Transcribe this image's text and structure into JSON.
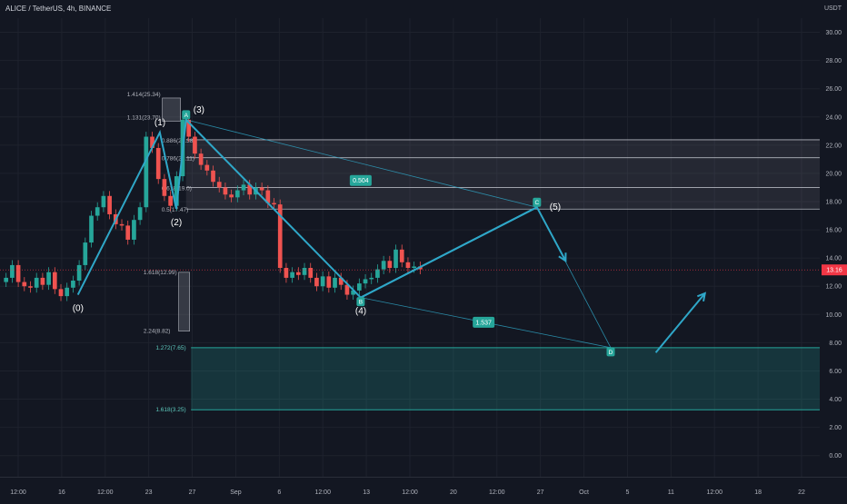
{
  "header": {
    "symbol_title": "ALICE / TetherUS, 4h, BINANCE",
    "currency": "USDT"
  },
  "colors": {
    "background": "#131722",
    "up_candle": "#26a69a",
    "down_candle": "#ef5350",
    "wave_line": "#2fa7c8",
    "fib_box_upper": "#787b86",
    "fib_box_target": "#26a69a",
    "price_tag": "#f23645"
  },
  "chart_data": {
    "type": "candlestick",
    "title": "ALICE / TetherUS, 4h, BINANCE",
    "y_unit": "USDT",
    "ylim": [
      -1.5,
      31
    ],
    "y_ticks": [
      0.0,
      2.0,
      4.0,
      6.0,
      8.0,
      10.0,
      12.0,
      14.0,
      16.0,
      18.0,
      20.0,
      22.0,
      24.0,
      26.0,
      28.0,
      30.0
    ],
    "x_ticks": [
      "12:00",
      "16",
      "12:00",
      "23",
      "27",
      "Sep",
      "6",
      "12:00",
      "13",
      "12:00",
      "20",
      "12:00",
      "27",
      "Oct",
      "5",
      "11",
      "12:00",
      "18",
      "22"
    ],
    "last_price": {
      "value": 13.16,
      "label": "13.16"
    },
    "price_series": [
      12.3,
      12.6,
      13.5,
      12.3,
      12.0,
      11.9,
      12.6,
      12.1,
      13.0,
      11.8,
      11.3,
      11.9,
      12.4,
      13.5,
      15.1,
      17.0,
      17.6,
      18.4,
      17.1,
      16.4,
      16.3,
      15.3,
      16.7,
      17.6,
      22.6,
      21.8,
      19.6,
      18.4,
      17.7,
      19.8,
      23.8,
      22.6,
      21.4,
      20.6,
      20.2,
      19.4,
      19.0,
      18.5,
      18.3,
      18.8,
      19.2,
      18.5,
      19.0,
      18.8,
      17.9,
      17.8,
      13.3,
      12.6,
      13.0,
      12.8,
      13.3,
      12.6,
      12.0,
      12.7,
      11.9,
      12.6,
      12.1,
      11.4,
      11.7,
      12.2,
      12.5,
      12.6,
      13.2,
      13.8,
      13.3,
      14.6,
      13.7,
      13.3,
      13.4,
      13.2
    ],
    "waves": [
      {
        "label": "(0)",
        "x": 0.095,
        "y": 11.4
      },
      {
        "label": "(1)",
        "x": 0.195,
        "y": 22.9
      },
      {
        "label": "(2)",
        "x": 0.215,
        "y": 17.5
      },
      {
        "label": "(3)",
        "x": 0.227,
        "y": 23.8
      },
      {
        "label": "(4)",
        "x": 0.44,
        "y": 11.2
      },
      {
        "label": "(5)",
        "x": 0.655,
        "y": 17.6
      }
    ],
    "projection": [
      {
        "x": 0.44,
        "y": 11.2
      },
      {
        "x": 0.655,
        "y": 17.6
      },
      {
        "x": 0.69,
        "y": 13.8
      }
    ],
    "future_arrow": [
      {
        "x": 0.8,
        "y": 7.3
      },
      {
        "x": 0.86,
        "y": 11.5
      }
    ],
    "abcd": [
      {
        "label": "A",
        "x": 0.227,
        "y": 23.8
      },
      {
        "label": "B",
        "x": 0.44,
        "y": 11.2
      },
      {
        "label": "C",
        "x": 0.655,
        "y": 17.6
      },
      {
        "label": "D",
        "x": 0.745,
        "y": 7.65
      }
    ],
    "abcd_ratios": [
      {
        "label": "0.504",
        "x": 0.44,
        "y": 19.5
      },
      {
        "label": "1.537",
        "x": 0.59,
        "y": 9.45
      }
    ],
    "fib_levels_upper": [
      {
        "label": "1.414(25.34)",
        "y": 25.34
      },
      {
        "label": "1.131(23.70)",
        "y": 23.7
      },
      {
        "label": "0.886(22.38)",
        "y": 22.38
      },
      {
        "label": "0.786(21.11)",
        "y": 21.11
      },
      {
        "label": "0.618(19.0)",
        "y": 19.0
      },
      {
        "label": "0.5(17.47)",
        "y": 17.47
      }
    ],
    "fib_levels_lower": [
      {
        "label": "1.618(12.99)",
        "y": 12.99
      },
      {
        "label": "2.24(8.82)",
        "y": 8.82
      }
    ],
    "fib_levels_target": [
      {
        "label": "1.272(7.65)",
        "y": 7.65
      },
      {
        "label": "1.618(3.25)",
        "y": 3.25
      }
    ]
  }
}
